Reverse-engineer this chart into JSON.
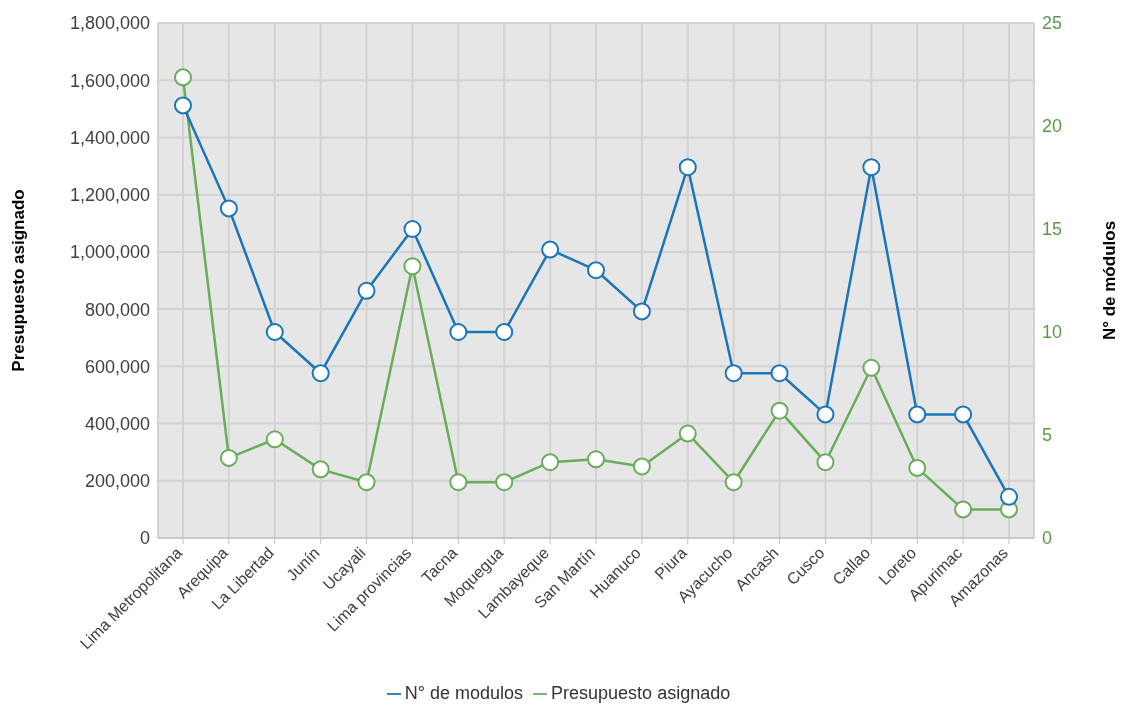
{
  "chart_data": {
    "type": "line",
    "categories": [
      "Lima Metropolitana",
      "Arequipa",
      "La Libertad",
      "Junín",
      "Ucayali",
      "Lima provincias",
      "Tacna",
      "Moquegua",
      "Lambayeque",
      "San Martín",
      "Huanuco",
      "Piura",
      "Ayacucho",
      "Ancash",
      "Cusco",
      "Callao",
      "Loreto",
      "Apurimac",
      "Amazonas"
    ],
    "series": [
      {
        "name": "Presupuesto asignado",
        "color": "#6aac5a",
        "values": [
          1610000,
          280000,
          345000,
          240000,
          195000,
          950000,
          195000,
          195000,
          265000,
          275000,
          250000,
          365000,
          195000,
          445000,
          265000,
          595000,
          245000,
          100000,
          100000
        ]
      },
      {
        "name": "N° de modulos",
        "color": "#1a76b8",
        "axis": "y2",
        "values": [
          21,
          16,
          10,
          8,
          12,
          15,
          10,
          10,
          14,
          13,
          11,
          18,
          8,
          8,
          6,
          18,
          6,
          6,
          2
        ]
      }
    ],
    "ylabel": "Presupuesto asignado",
    "y2label": "N° de módulos",
    "ylim": [
      0,
      1800000
    ],
    "yticks": [
      {
        "value": 0,
        "label": "0"
      },
      {
        "value": 200000,
        "label": "200,000"
      },
      {
        "value": 400000,
        "label": "400,000"
      },
      {
        "value": 600000,
        "label": "600,000"
      },
      {
        "value": 800000,
        "label": "800,000"
      },
      {
        "value": 1000000,
        "label": "1,000,000"
      },
      {
        "value": 1200000,
        "label": "1,200,000"
      },
      {
        "value": 1400000,
        "label": "1,400,000"
      },
      {
        "value": 1600000,
        "label": "1,600,000"
      },
      {
        "value": 1800000,
        "label": "1,800,000"
      }
    ],
    "y2lim": [
      0,
      25
    ],
    "y2ticks": [
      0,
      5,
      10,
      15,
      20,
      25
    ],
    "grid": true,
    "legend": "bottom",
    "marker": "circle",
    "line_style": "solid"
  }
}
